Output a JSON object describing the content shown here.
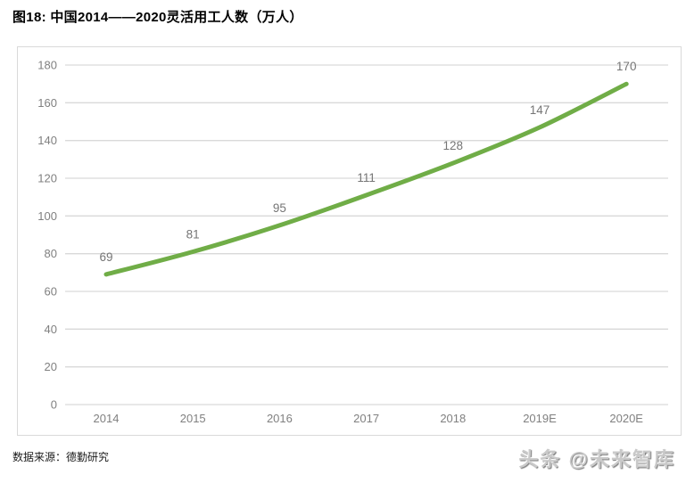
{
  "header": {
    "title": "图18:  中国2014——2020灵活用工人数（万人）"
  },
  "footer": {
    "source": "数据来源：德勤研究",
    "watermark": "头条 @未来智库"
  },
  "chart_data": {
    "type": "line",
    "title": "中国2014——2020灵活用工人数（万人）",
    "categories": [
      "2014",
      "2015",
      "2016",
      "2017",
      "2018",
      "2019E",
      "2020E"
    ],
    "values": [
      69,
      81,
      95,
      111,
      128,
      147,
      170
    ],
    "xlabel": "",
    "ylabel": "",
    "ylim": [
      0,
      180
    ],
    "ytick_step": 20,
    "grid": true,
    "legend": "none",
    "colors": {
      "line": "#70ad47",
      "gridline": "#d9d9d9",
      "axis_text": "#808080",
      "data_label": "#757575",
      "plot_border": "#d9d9d9"
    }
  }
}
